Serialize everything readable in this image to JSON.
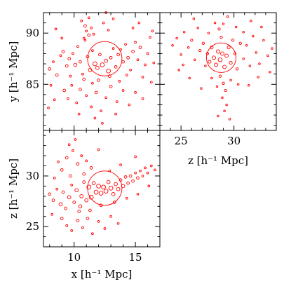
{
  "chart_data": [
    {
      "type": "scatter",
      "panel": "top-left",
      "xlabel": "",
      "ylabel": "y [h⁻¹ Mpc]",
      "xlim": [
        7.5,
        17
      ],
      "ylim": [
        80.5,
        92
      ],
      "xticks": [],
      "yticks": [
        85,
        90
      ],
      "point_color": "#ff0000",
      "halo": {
        "x": 12.5,
        "y": 87.5,
        "r": 1.4
      },
      "points": [
        [
          8.0,
          86.5,
          0.2
        ],
        [
          8.3,
          87.2,
          0.15
        ],
        [
          8.6,
          85.9,
          0.2
        ],
        [
          8.9,
          87.8,
          0.15
        ],
        [
          9.1,
          88.2,
          0.2
        ],
        [
          9.4,
          86.8,
          0.2
        ],
        [
          9.6,
          87.5,
          0.2
        ],
        [
          9.9,
          88.0,
          0.15
        ],
        [
          10.1,
          86.9,
          0.25
        ],
        [
          10.3,
          88.7,
          0.15
        ],
        [
          10.5,
          87.2,
          0.2
        ],
        [
          10.7,
          86.0,
          0.15
        ],
        [
          10.9,
          89.3,
          0.15
        ],
        [
          11.1,
          87.7,
          0.2
        ],
        [
          11.3,
          86.4,
          0.25
        ],
        [
          11.5,
          88.3,
          0.15
        ],
        [
          11.7,
          87.0,
          0.3
        ],
        [
          11.9,
          86.6,
          0.25
        ],
        [
          12.1,
          87.9,
          0.2
        ],
        [
          12.3,
          86.9,
          0.3
        ],
        [
          12.6,
          87.3,
          0.25
        ],
        [
          12.8,
          86.3,
          0.3
        ],
        [
          13.0,
          87.6,
          0.2
        ],
        [
          13.2,
          88.5,
          0.15
        ],
        [
          13.4,
          86.7,
          0.2
        ],
        [
          13.6,
          87.9,
          0.2
        ],
        [
          13.8,
          88.4,
          0.15
        ],
        [
          14.0,
          87.2,
          0.2
        ],
        [
          14.2,
          88.9,
          0.15
        ],
        [
          14.4,
          87.6,
          0.2
        ],
        [
          14.6,
          86.4,
          0.15
        ],
        [
          14.8,
          88.2,
          0.2
        ],
        [
          15.0,
          89.1,
          0.15
        ],
        [
          15.2,
          87.4,
          0.15
        ],
        [
          15.4,
          88.6,
          0.2
        ],
        [
          15.6,
          85.7,
          0.15
        ],
        [
          15.8,
          86.9,
          0.15
        ],
        [
          16.0,
          88.0,
          0.15
        ],
        [
          16.2,
          89.6,
          0.15
        ],
        [
          16.5,
          87.1,
          0.15
        ],
        [
          10.6,
          91.2,
          0.15
        ],
        [
          10.9,
          90.7,
          0.2
        ],
        [
          11.0,
          90.2,
          0.15
        ],
        [
          11.2,
          89.8,
          0.2
        ],
        [
          11.4,
          90.5,
          0.15
        ],
        [
          11.2,
          91.5,
          0.15
        ],
        [
          10.8,
          89.5,
          0.15
        ],
        [
          11.6,
          89.9,
          0.15
        ],
        [
          12.4,
          91.0,
          0.15
        ],
        [
          12.8,
          90.3,
          0.15
        ],
        [
          13.2,
          91.4,
          0.15
        ],
        [
          12.6,
          92.0,
          0.15
        ],
        [
          9.2,
          84.4,
          0.2
        ],
        [
          9.5,
          83.6,
          0.15
        ],
        [
          9.8,
          84.9,
          0.15
        ],
        [
          10.2,
          83.2,
          0.15
        ],
        [
          10.5,
          84.5,
          0.2
        ],
        [
          11.0,
          83.9,
          0.15
        ],
        [
          11.4,
          82.8,
          0.15
        ],
        [
          11.8,
          84.2,
          0.2
        ],
        [
          12.2,
          82.4,
          0.15
        ],
        [
          12.6,
          83.7,
          0.15
        ],
        [
          13.0,
          84.8,
          0.2
        ],
        [
          13.5,
          83.3,
          0.15
        ],
        [
          14.0,
          84.4,
          0.15
        ],
        [
          14.5,
          83.0,
          0.15
        ],
        [
          15.0,
          84.2,
          0.15
        ],
        [
          8.1,
          84.9,
          0.15
        ],
        [
          8.4,
          83.5,
          0.15
        ],
        [
          7.9,
          82.7,
          0.15
        ],
        [
          11.7,
          81.7,
          0.15
        ],
        [
          12.3,
          81.2,
          0.15
        ],
        [
          10.4,
          82.1,
          0.15
        ],
        [
          13.4,
          82.1,
          0.15
        ],
        [
          15.6,
          83.6,
          0.15
        ],
        [
          16.3,
          85.2,
          0.15
        ],
        [
          9.0,
          89.5,
          0.15
        ],
        [
          8.5,
          90.4,
          0.15
        ],
        [
          14.8,
          90.5,
          0.15
        ],
        [
          15.3,
          91.0,
          0.15
        ],
        [
          16.4,
          90.2,
          0.15
        ],
        [
          12.0,
          85.4,
          0.2
        ],
        [
          12.9,
          85.8,
          0.2
        ],
        [
          13.7,
          85.3,
          0.15
        ],
        [
          10.8,
          85.5,
          0.2
        ],
        [
          9.7,
          85.8,
          0.15
        ],
        [
          11.5,
          85.1,
          0.15
        ],
        [
          14.3,
          85.9,
          0.15
        ]
      ]
    },
    {
      "type": "scatter",
      "panel": "top-right",
      "xlabel": "z [h⁻¹ Mpc]",
      "ylabel": "",
      "xlim": [
        23,
        34
      ],
      "ylim": [
        80.5,
        92
      ],
      "xticks": [
        25,
        30
      ],
      "yticks": [],
      "point_color": "#ff0000",
      "halo": {
        "x": 28.8,
        "y": 87.6,
        "r": 1.4
      },
      "points": [
        [
          24.2,
          88.8,
          0.15
        ],
        [
          24.6,
          89.5,
          0.15
        ],
        [
          25.0,
          87.9,
          0.15
        ],
        [
          25.3,
          90.1,
          0.15
        ],
        [
          25.7,
          88.6,
          0.15
        ],
        [
          26.0,
          89.3,
          0.2
        ],
        [
          26.3,
          87.4,
          0.15
        ],
        [
          26.6,
          90.5,
          0.15
        ],
        [
          26.8,
          88.3,
          0.2
        ],
        [
          27.1,
          89.0,
          0.2
        ],
        [
          27.3,
          86.8,
          0.15
        ],
        [
          27.5,
          88.0,
          0.2
        ],
        [
          27.7,
          87.2,
          0.25
        ],
        [
          27.9,
          88.6,
          0.25
        ],
        [
          28.1,
          87.6,
          0.3
        ],
        [
          28.3,
          86.9,
          0.3
        ],
        [
          28.5,
          88.2,
          0.3
        ],
        [
          28.7,
          87.4,
          0.35
        ],
        [
          28.9,
          88.0,
          0.3
        ],
        [
          29.1,
          86.7,
          0.3
        ],
        [
          29.3,
          87.8,
          0.3
        ],
        [
          29.5,
          88.6,
          0.25
        ],
        [
          29.7,
          87.1,
          0.25
        ],
        [
          29.9,
          89.3,
          0.2
        ],
        [
          30.1,
          88.0,
          0.2
        ],
        [
          30.3,
          86.5,
          0.2
        ],
        [
          30.6,
          89.0,
          0.2
        ],
        [
          30.9,
          87.5,
          0.15
        ],
        [
          31.2,
          88.8,
          0.15
        ],
        [
          31.5,
          86.8,
          0.15
        ],
        [
          31.8,
          89.7,
          0.15
        ],
        [
          32.1,
          88.1,
          0.15
        ],
        [
          32.4,
          87.0,
          0.15
        ],
        [
          32.8,
          89.3,
          0.15
        ],
        [
          33.2,
          87.8,
          0.15
        ],
        [
          33.6,
          88.5,
          0.15
        ],
        [
          28.2,
          91.0,
          0.15
        ],
        [
          28.6,
          90.4,
          0.2
        ],
        [
          29.0,
          90.9,
          0.15
        ],
        [
          29.4,
          91.6,
          0.15
        ],
        [
          28.8,
          89.6,
          0.2
        ],
        [
          30.2,
          90.6,
          0.15
        ],
        [
          28.7,
          85.8,
          0.2
        ],
        [
          29.0,
          85.1,
          0.2
        ],
        [
          29.2,
          84.4,
          0.2
        ],
        [
          28.9,
          83.7,
          0.15
        ],
        [
          29.3,
          83.0,
          0.15
        ],
        [
          29.1,
          82.4,
          0.15
        ],
        [
          28.5,
          81.9,
          0.15
        ],
        [
          29.6,
          81.6,
          0.15
        ],
        [
          28.4,
          84.8,
          0.15
        ],
        [
          29.7,
          85.4,
          0.15
        ],
        [
          27.9,
          85.6,
          0.15
        ],
        [
          30.4,
          85.0,
          0.15
        ],
        [
          25.8,
          85.6,
          0.15
        ],
        [
          26.9,
          84.6,
          0.15
        ],
        [
          31.4,
          84.9,
          0.15
        ],
        [
          32.3,
          85.7,
          0.15
        ],
        [
          24.8,
          86.4,
          0.15
        ],
        [
          33.4,
          86.2,
          0.15
        ],
        [
          26.2,
          91.4,
          0.15
        ],
        [
          31.6,
          91.2,
          0.15
        ],
        [
          27.6,
          90.0,
          0.15
        ],
        [
          30.9,
          90.1,
          0.15
        ],
        [
          25.2,
          86.9,
          0.15
        ],
        [
          32.6,
          90.6,
          0.15
        ]
      ]
    },
    {
      "type": "scatter",
      "panel": "bottom-left",
      "xlabel": "x [h⁻¹ Mpc]",
      "ylabel": "z [h⁻¹ Mpc]",
      "xlim": [
        7.5,
        17
      ],
      "ylim": [
        23,
        34.5
      ],
      "xticks": [
        10,
        15
      ],
      "yticks": [
        25,
        30
      ],
      "point_color": "#ff0000",
      "halo": {
        "x": 12.5,
        "y": 28.8,
        "r": 1.4
      },
      "points": [
        [
          8.0,
          28.2,
          0.2
        ],
        [
          8.3,
          27.6,
          0.2
        ],
        [
          8.6,
          28.7,
          0.15
        ],
        [
          8.9,
          27.2,
          0.25
        ],
        [
          9.1,
          28.4,
          0.2
        ],
        [
          9.3,
          26.8,
          0.2
        ],
        [
          9.6,
          27.9,
          0.25
        ],
        [
          9.8,
          29.1,
          0.15
        ],
        [
          10.0,
          27.4,
          0.2
        ],
        [
          10.2,
          28.6,
          0.25
        ],
        [
          10.4,
          26.5,
          0.2
        ],
        [
          10.6,
          28.0,
          0.25
        ],
        [
          10.8,
          29.4,
          0.2
        ],
        [
          11.0,
          27.6,
          0.25
        ],
        [
          11.2,
          28.9,
          0.3
        ],
        [
          11.4,
          27.9,
          0.3
        ],
        [
          11.6,
          29.3,
          0.25
        ],
        [
          11.8,
          28.4,
          0.3
        ],
        [
          12.0,
          29.0,
          0.3
        ],
        [
          12.2,
          28.3,
          0.3
        ],
        [
          12.4,
          28.9,
          0.3
        ],
        [
          12.6,
          28.5,
          0.3
        ],
        [
          12.8,
          29.4,
          0.25
        ],
        [
          13.0,
          28.8,
          0.3
        ],
        [
          13.2,
          28.2,
          0.25
        ],
        [
          13.4,
          29.2,
          0.25
        ],
        [
          13.6,
          28.7,
          0.25
        ],
        [
          13.8,
          29.6,
          0.2
        ],
        [
          14.0,
          29.0,
          0.25
        ],
        [
          14.2,
          29.9,
          0.2
        ],
        [
          14.4,
          29.3,
          0.2
        ],
        [
          14.6,
          30.0,
          0.2
        ],
        [
          14.8,
          29.5,
          0.2
        ],
        [
          15.0,
          30.3,
          0.15
        ],
        [
          15.2,
          29.8,
          0.2
        ],
        [
          15.4,
          30.5,
          0.15
        ],
        [
          15.6,
          30.0,
          0.15
        ],
        [
          15.8,
          30.8,
          0.15
        ],
        [
          16.0,
          30.3,
          0.15
        ],
        [
          16.3,
          31.0,
          0.15
        ],
        [
          16.6,
          30.6,
          0.15
        ],
        [
          9.6,
          33.1,
          0.15
        ],
        [
          9.9,
          32.5,
          0.15
        ],
        [
          10.1,
          33.6,
          0.15
        ],
        [
          9.4,
          31.8,
          0.2
        ],
        [
          10.3,
          31.2,
          0.2
        ],
        [
          10.6,
          32.0,
          0.15
        ],
        [
          11.0,
          31.5,
          0.15
        ],
        [
          9.0,
          30.6,
          0.2
        ],
        [
          8.7,
          31.4,
          0.15
        ],
        [
          11.4,
          30.8,
          0.2
        ],
        [
          10.8,
          30.2,
          0.2
        ],
        [
          9.7,
          30.0,
          0.2
        ],
        [
          9.0,
          25.8,
          0.2
        ],
        [
          9.4,
          25.1,
          0.15
        ],
        [
          9.8,
          24.6,
          0.15
        ],
        [
          10.3,
          25.6,
          0.2
        ],
        [
          10.7,
          24.9,
          0.15
        ],
        [
          11.1,
          25.8,
          0.2
        ],
        [
          11.5,
          24.3,
          0.15
        ],
        [
          12.0,
          25.5,
          0.15
        ],
        [
          12.5,
          24.8,
          0.15
        ],
        [
          13.0,
          26.0,
          0.15
        ],
        [
          13.6,
          25.3,
          0.15
        ],
        [
          8.2,
          26.2,
          0.15
        ],
        [
          10.5,
          27.0,
          0.25
        ],
        [
          11.3,
          26.6,
          0.2
        ],
        [
          12.2,
          27.1,
          0.2
        ],
        [
          13.3,
          27.4,
          0.2
        ],
        [
          14.3,
          27.8,
          0.15
        ],
        [
          15.2,
          28.2,
          0.15
        ],
        [
          16.1,
          29.0,
          0.15
        ],
        [
          8.4,
          29.8,
          0.15
        ],
        [
          12.9,
          30.5,
          0.15
        ],
        [
          13.8,
          31.1,
          0.15
        ],
        [
          15.0,
          31.9,
          0.15
        ],
        [
          12.0,
          32.6,
          0.15
        ]
      ]
    }
  ]
}
